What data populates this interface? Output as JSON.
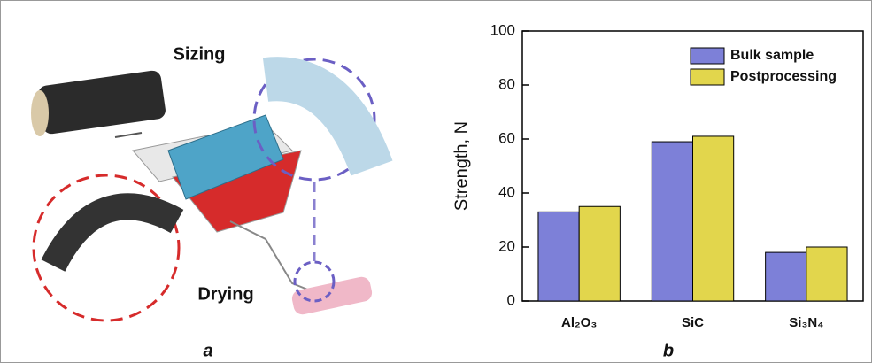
{
  "illustration": {
    "labels": [
      "Sizing",
      "Drying"
    ],
    "panel_label": "a"
  },
  "chart_data": {
    "type": "bar",
    "panel_label": "b",
    "ylabel": "Strength, N",
    "categories": [
      "Al₂O₃",
      "SiC",
      "Si₃N₄"
    ],
    "series": [
      {
        "name": "Bulk sample",
        "color": "#7d80d8",
        "values": [
          33,
          59,
          18
        ]
      },
      {
        "name": "Postprocessing",
        "color": "#e2d64c",
        "values": [
          35,
          61,
          20
        ]
      }
    ],
    "ylim": [
      0,
      100
    ],
    "yticks": [
      0,
      20,
      40,
      60,
      80,
      100
    ],
    "legend": "upper-right",
    "grid": false
  }
}
